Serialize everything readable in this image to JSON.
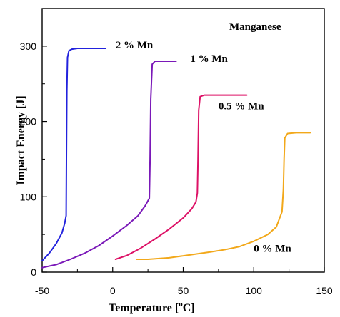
{
  "chart_data": {
    "type": "line",
    "title": "",
    "xlabel": "Temperature [°C]",
    "xlabel_parts": {
      "main": "Temperature [",
      "sup": "o",
      "end": "C]"
    },
    "ylabel": "Impact Energy [J]",
    "xlim": [
      -50,
      150
    ],
    "ylim": [
      0,
      350
    ],
    "xticks": [
      -50,
      0,
      50,
      100,
      150
    ],
    "yticks": [
      0,
      100,
      200,
      300
    ],
    "grid": false,
    "legend": "none",
    "annotation": "Manganese",
    "series": [
      {
        "name": "2 % Mn",
        "color": "#2222dd",
        "x": [
          -50,
          -45,
          -40,
          -36,
          -34,
          -33,
          -32.8,
          -32.5,
          -32,
          -31,
          -29,
          -25,
          -20,
          -10,
          -5
        ],
        "y": [
          15,
          25,
          38,
          52,
          65,
          75,
          150,
          240,
          285,
          294,
          296,
          297,
          297,
          297,
          297
        ]
      },
      {
        "name": "1 % Mn",
        "color": "#7a18b8",
        "x": [
          -50,
          -40,
          -30,
          -20,
          -10,
          0,
          10,
          18,
          23,
          26,
          26.5,
          27,
          28,
          30,
          35,
          45
        ],
        "y": [
          6,
          10,
          17,
          25,
          35,
          48,
          62,
          75,
          88,
          98,
          150,
          230,
          276,
          280,
          280,
          280
        ]
      },
      {
        "name": "0.5 % Mn",
        "color": "#dd1166",
        "x": [
          2,
          10,
          20,
          30,
          40,
          50,
          56,
          59,
          60,
          60.5,
          61,
          62,
          65,
          70,
          80,
          95
        ],
        "y": [
          17,
          22,
          32,
          44,
          57,
          72,
          84,
          93,
          105,
          150,
          215,
          233,
          235,
          235,
          235,
          235
        ]
      },
      {
        "name": "0 % Mn",
        "color": "#f2a81a",
        "x": [
          17,
          25,
          40,
          55,
          70,
          80,
          90,
          100,
          110,
          116,
          120,
          121,
          121.5,
          122,
          124,
          130,
          140
        ],
        "y": [
          17,
          17,
          19,
          23,
          27,
          30,
          34,
          41,
          50,
          60,
          80,
          110,
          150,
          178,
          184,
          185,
          185
        ]
      }
    ],
    "labels": [
      {
        "text": "2 % Mn",
        "x": 2,
        "y": 297
      },
      {
        "text": "1 % Mn",
        "x": 55,
        "y": 279
      },
      {
        "text": "0.5 % Mn",
        "x": 75,
        "y": 216
      },
      {
        "text": "0 % Mn",
        "x": 100,
        "y": 27
      }
    ]
  }
}
